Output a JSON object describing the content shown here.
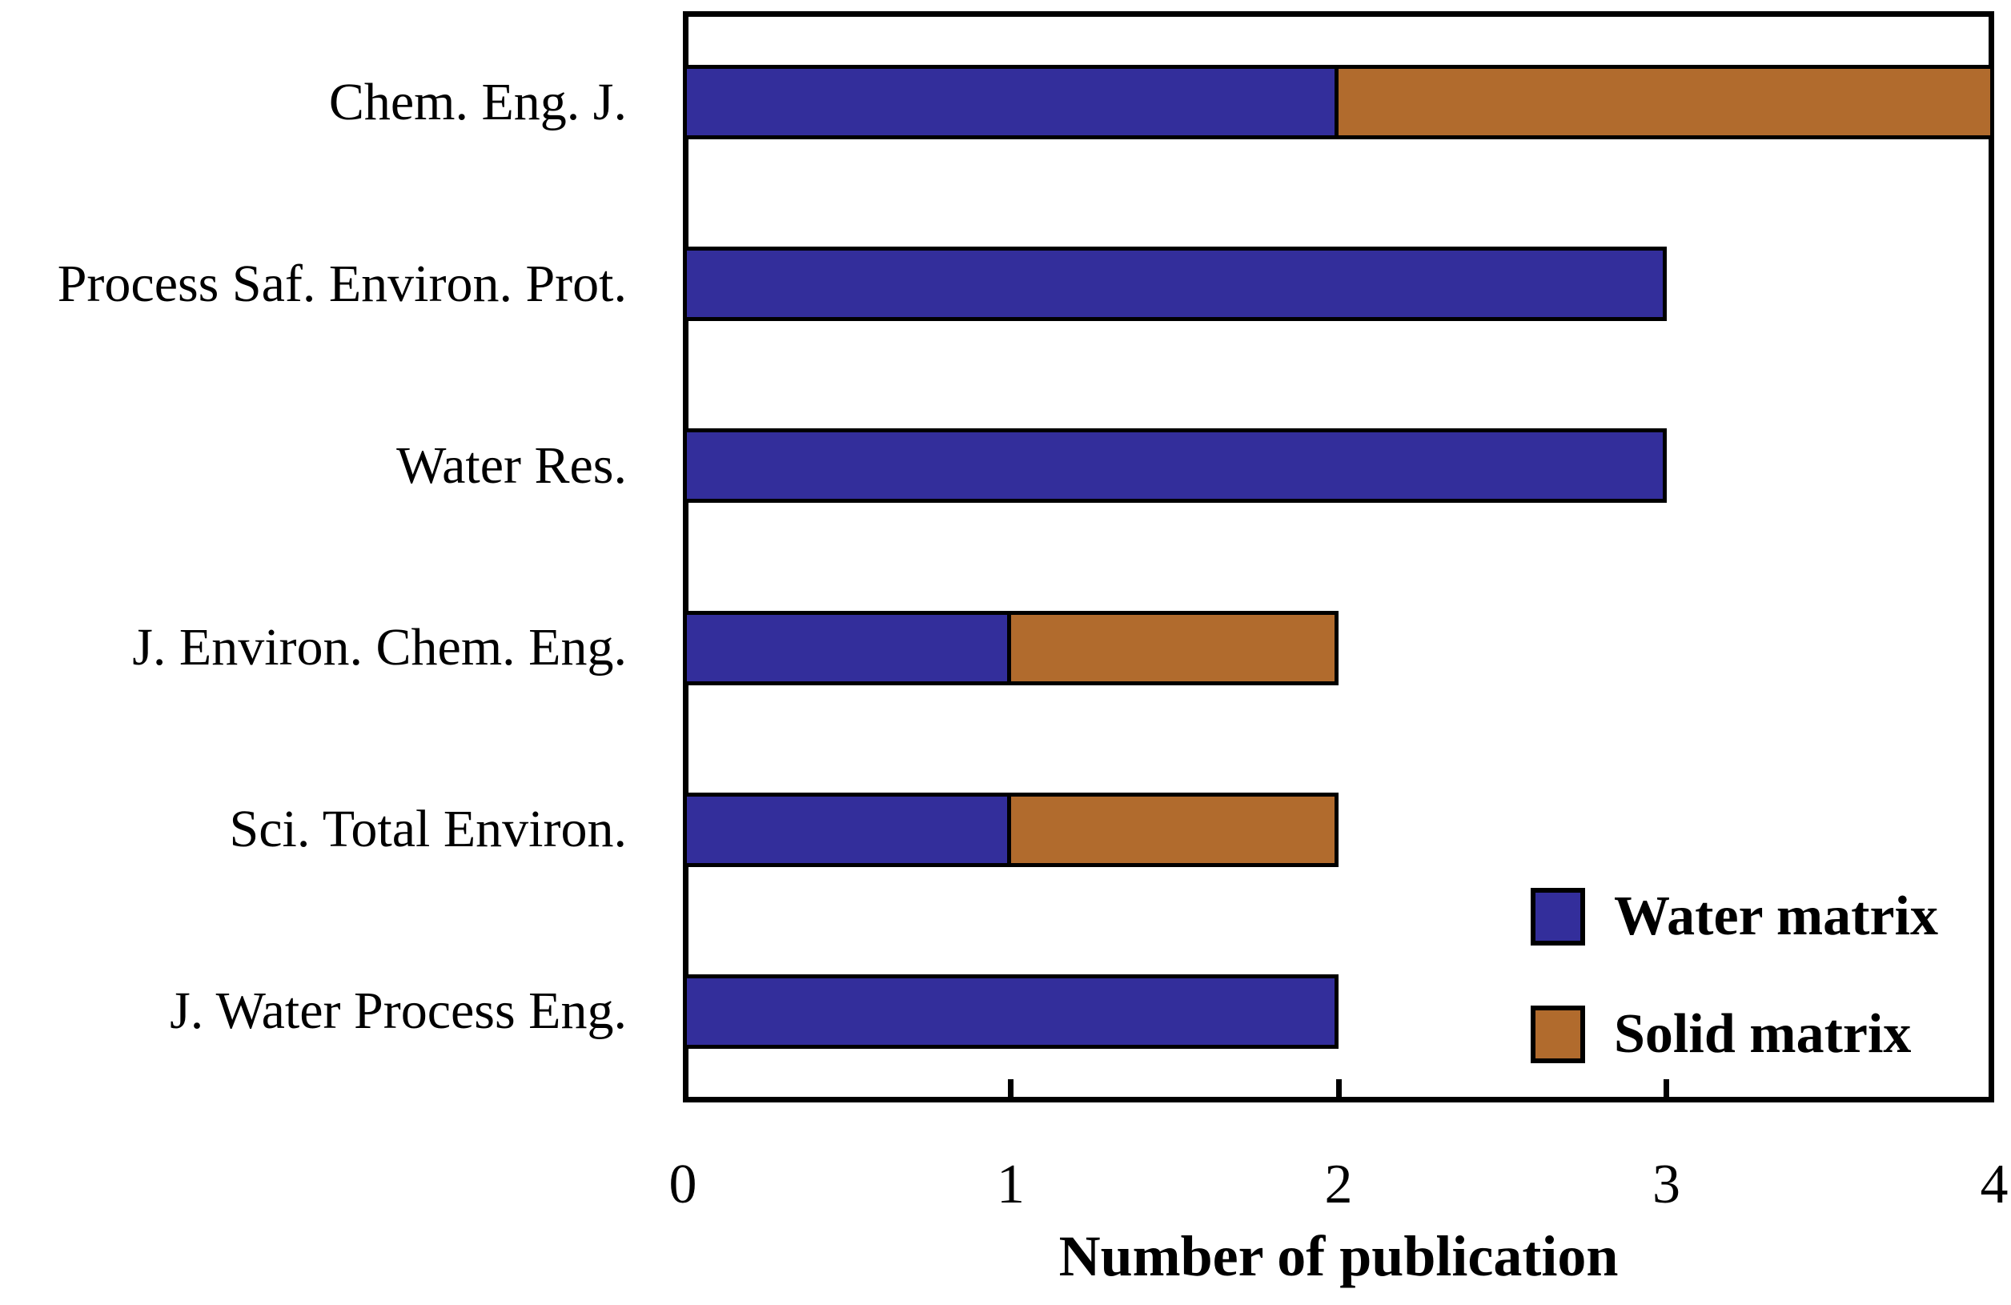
{
  "chart_data": {
    "type": "bar",
    "orientation": "horizontal",
    "stacked": true,
    "title": "",
    "xlabel": "Number of publication",
    "ylabel": "",
    "xlim": [
      0,
      4
    ],
    "xticks": [
      0,
      1,
      2,
      3,
      4
    ],
    "grid": false,
    "legend_position": "inside-lower-right",
    "background": "#FFFFFF",
    "axis_color": "#000000",
    "bar_border_color": "#000000",
    "categories": [
      "Chem. Eng. J.",
      "Process Saf. Environ. Prot.",
      "Water Res.",
      "J. Environ. Chem. Eng.",
      "Sci. Total Environ.",
      "J. Water Process Eng."
    ],
    "series": [
      {
        "name": "Water matrix",
        "color": "#332E9B",
        "values": [
          2,
          3,
          3,
          1,
          1,
          2
        ]
      },
      {
        "name": "Solid matrix",
        "color": "#B16B2D",
        "values": [
          2,
          0,
          0,
          1,
          1,
          0
        ]
      }
    ]
  }
}
